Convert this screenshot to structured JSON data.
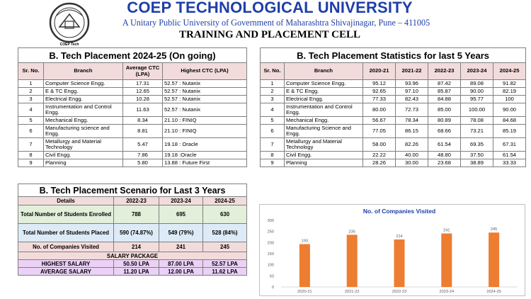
{
  "header": {
    "title": "COEP TECHNOLOGICAL UNIVERSITY",
    "subtitle": "A Unitary Public University of Government of Maharashtra Shivajinagar, Pune – 411005",
    "cell": "TRAINING AND PLACEMENT CELL",
    "logo_caption": "COEP Tech"
  },
  "placement_2024": {
    "title": "B. Tech Placement 2024-25 (On going)",
    "headers": [
      "Sr. No.",
      "Branch",
      "Average CTC (LPA)",
      "Highest CTC (LPA)"
    ],
    "rows": [
      [
        "1",
        "Computer Science Engg.",
        "17.31",
        "52.57 : Nutanix"
      ],
      [
        "2",
        "E & TC Engg.",
        "12.65",
        "52.57 : Nutanix"
      ],
      [
        "3",
        "Electrical Engg.",
        "10.28",
        "52.57 : Nutanix"
      ],
      [
        "4",
        "Instrumentation and Control Engg.",
        "11.63",
        "52.57 : Nutanix"
      ],
      [
        "5",
        "Mechanical Engg.",
        "8.34",
        "21.10 : FINIQ"
      ],
      [
        "6",
        "Manufacturing science and Engg.",
        "8.81",
        "21.10 : FINIQ"
      ],
      [
        "7",
        "Metallurgy and Material Technology",
        "5.47",
        "19.18 : Oracle"
      ],
      [
        "8",
        "Civil Engg.",
        "7.86",
        "19.18 :Oracle"
      ],
      [
        "9",
        "Planning",
        "5.80",
        "13.88 : Future First"
      ]
    ]
  },
  "stats_5yr": {
    "title": "B. Tech Placement Statistics for last 5 Years",
    "headers": [
      "Sr. No.",
      "Branch",
      "2020-21",
      "2021-22",
      "2022-23",
      "2023-24",
      "2024-25"
    ],
    "rows": [
      [
        "1",
        "Computer Science Engg.",
        "95.12",
        "93.96",
        "87.42",
        "89.08",
        "91.82"
      ],
      [
        "2",
        "E & TC Engg.",
        "92.65",
        "97.10",
        "85.87",
        "90.00",
        "82.19"
      ],
      [
        "3",
        "Electrical Engg.",
        "77.33",
        "82.43",
        "84.88",
        "95.77",
        "100"
      ],
      [
        "4",
        "Instrumentation and Control Engg.",
        "80.00",
        "72.73",
        "85.00",
        "100.00",
        "90.00"
      ],
      [
        "5",
        "Mechanical Engg.",
        "56.67",
        "78.34",
        "80.89",
        "78.08",
        "84.68"
      ],
      [
        "6",
        "Manufacturing Science and Engg.",
        "77.05",
        "86.15",
        "68.66",
        "73.21",
        "85.19"
      ],
      [
        "7",
        "Metallurgy and Material Technology",
        "58.00",
        "82.26",
        "61.54",
        "69.35",
        "67.31"
      ],
      [
        "8",
        "Civil Engg.",
        "22.22",
        "40.00",
        "48.80",
        "37.50",
        "61.54"
      ],
      [
        "9",
        "Planning",
        "28.26",
        "30.00",
        "23.68",
        "38.89",
        "33.33"
      ]
    ]
  },
  "scenario": {
    "title": "B. Tech Placement Scenario for Last  3 Years",
    "headers": [
      "Details",
      "2022-23",
      "2023-24",
      "2024-25"
    ],
    "rows": [
      [
        "Total Number of Students Enrolled",
        "788",
        "695",
        "630"
      ],
      [
        "Total Number of Students Placed",
        "590 (74.87%)",
        "549 (79%)",
        "528 (84%)"
      ],
      [
        "No. of Companies Visited",
        "214",
        "241",
        "245"
      ]
    ],
    "salary_header": "SALARY PACKAGE",
    "salary_rows": [
      [
        "HIGHEST SALARY",
        "50.50 LPA",
        "87.00 LPA",
        "52.57 LPA"
      ],
      [
        "AVERAGE SALARY",
        "11.20 LPA",
        "12.00 LPA",
        "11.62 LPA"
      ]
    ]
  },
  "chart_data": {
    "type": "bar",
    "title": "No. of Companies Visited",
    "categories": [
      "2020-21",
      "2021-22",
      "2022-23",
      "2023-24",
      "2024-25"
    ],
    "values": [
      193,
      235,
      214,
      241,
      245
    ],
    "ylim": [
      0,
      300
    ],
    "yticks": [
      "0",
      "50",
      "100",
      "150",
      "200",
      "250",
      "300"
    ],
    "grid": false,
    "bar_color": "#ed7d31",
    "title_color": "#1f3fa8"
  },
  "colors": {
    "brand_blue": "#1f3fa8",
    "header_pink": "#f2dcdb",
    "row_green": "#e2efda",
    "row_blue": "#ddebf7",
    "salary_purple": "#ead1f5"
  }
}
